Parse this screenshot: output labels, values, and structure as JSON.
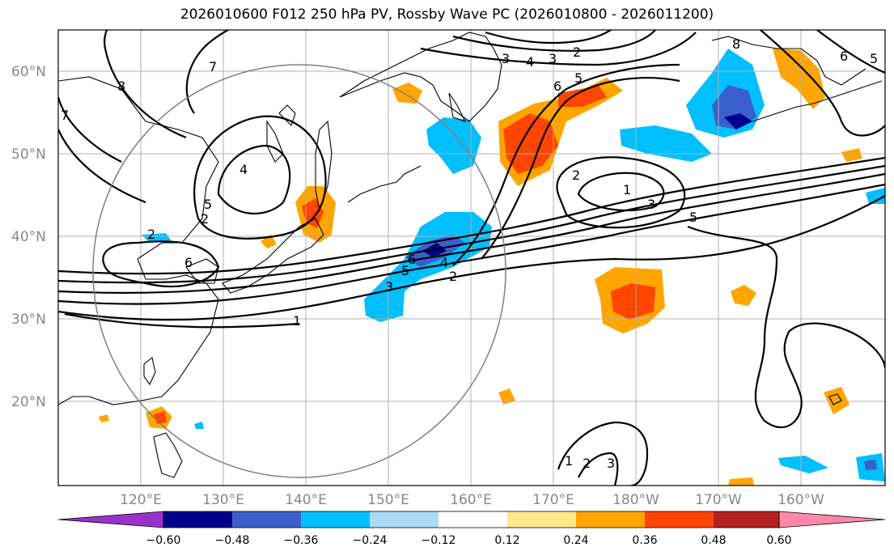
{
  "title": "2026010600 F012 250 hPa PV, Rossby Wave PC (2026010800 - 2026011200)",
  "latitude_labels": [
    "60°N",
    "50°N",
    "40°N",
    "30°N",
    "20°N"
  ],
  "longitude_labels": [
    "120°E",
    "130°E",
    "140°E",
    "150°E",
    "160°E",
    "170°E",
    "180°W",
    "170°W",
    "160°W"
  ],
  "colorbar": {
    "ticks": [
      "−0.60",
      "−0.48",
      "−0.36",
      "−0.24",
      "−0.12",
      "0.12",
      "0.24",
      "0.36",
      "0.48",
      "0.60"
    ],
    "colors": [
      "#9932cc",
      "#00008b",
      "#3a5fcd",
      "#00bfff",
      "#aadcf8",
      "#ffffff",
      "#ffe88a",
      "#ffa500",
      "#ff4500",
      "#b22222",
      "#ff88aa"
    ]
  },
  "contour_labels": [
    "1",
    "2",
    "3",
    "4",
    "5",
    "6",
    "7",
    "8",
    "1",
    "2",
    "3",
    "4",
    "5",
    "6",
    "2",
    "3",
    "5",
    "6",
    "8",
    "2",
    "3",
    "1",
    "2",
    "3",
    "5",
    "6",
    "2",
    "4",
    "5",
    "7"
  ],
  "legend_colors": {
    "neg_strong": "#00008b",
    "neg_mid": "#3a5fcd",
    "neg": "#00bfff",
    "neg_weak": "#aadcf8",
    "pos_weak": "#ffe88a",
    "pos": "#ffa500",
    "pos_mid": "#ff4500",
    "pos_strong": "#b22222"
  }
}
